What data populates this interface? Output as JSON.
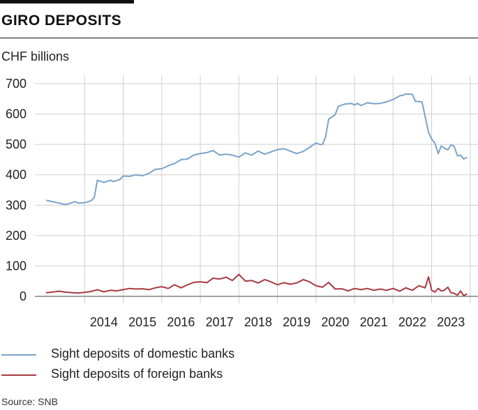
{
  "header": {
    "title": "GIRO DEPOSITS",
    "unit": "CHF billions"
  },
  "source": "Source: SNB",
  "chart_data": {
    "type": "line",
    "title": "GIRO DEPOSITS",
    "ylabel": "CHF billions",
    "xlabel": "",
    "ylim": [
      0,
      700
    ],
    "yticks": [
      0,
      100,
      200,
      300,
      400,
      500,
      600,
      700
    ],
    "xlim": [
      2013,
      2023.75
    ],
    "xticks": [
      "2014",
      "2015",
      "2016",
      "2017",
      "2018",
      "2019",
      "2020",
      "2021",
      "2022",
      "2023"
    ],
    "grid": true,
    "legend_position": "bottom",
    "series": [
      {
        "name": "Sight deposits of domestic banks",
        "color": "#7aa3c9",
        "points": [
          [
            2013.0,
            316
          ],
          [
            2013.17,
            312
          ],
          [
            2013.33,
            307
          ],
          [
            2013.5,
            302
          ],
          [
            2013.67,
            308
          ],
          [
            2013.75,
            312
          ],
          [
            2013.83,
            307
          ],
          [
            2014.0,
            308
          ],
          [
            2014.17,
            315
          ],
          [
            2014.25,
            325
          ],
          [
            2014.33,
            382
          ],
          [
            2014.5,
            375
          ],
          [
            2014.67,
            382
          ],
          [
            2014.75,
            378
          ],
          [
            2014.92,
            385
          ],
          [
            2015.0,
            396
          ],
          [
            2015.17,
            395
          ],
          [
            2015.33,
            400
          ],
          [
            2015.5,
            397
          ],
          [
            2015.67,
            405
          ],
          [
            2015.83,
            418
          ],
          [
            2016.0,
            420
          ],
          [
            2016.17,
            430
          ],
          [
            2016.33,
            437
          ],
          [
            2016.5,
            450
          ],
          [
            2016.67,
            452
          ],
          [
            2016.83,
            465
          ],
          [
            2017.0,
            470
          ],
          [
            2017.17,
            473
          ],
          [
            2017.33,
            480
          ],
          [
            2017.5,
            465
          ],
          [
            2017.67,
            468
          ],
          [
            2017.83,
            465
          ],
          [
            2018.0,
            458
          ],
          [
            2018.17,
            472
          ],
          [
            2018.33,
            465
          ],
          [
            2018.5,
            478
          ],
          [
            2018.67,
            468
          ],
          [
            2018.83,
            475
          ],
          [
            2019.0,
            483
          ],
          [
            2019.17,
            486
          ],
          [
            2019.33,
            478
          ],
          [
            2019.5,
            470
          ],
          [
            2019.67,
            477
          ],
          [
            2019.83,
            490
          ],
          [
            2020.0,
            505
          ],
          [
            2020.1,
            500
          ],
          [
            2020.17,
            500
          ],
          [
            2020.25,
            525
          ],
          [
            2020.33,
            583
          ],
          [
            2020.5,
            598
          ],
          [
            2020.58,
            625
          ],
          [
            2020.75,
            633
          ],
          [
            2020.92,
            635
          ],
          [
            2021.0,
            630
          ],
          [
            2021.08,
            635
          ],
          [
            2021.17,
            628
          ],
          [
            2021.33,
            637
          ],
          [
            2021.5,
            634
          ],
          [
            2021.67,
            635
          ],
          [
            2021.83,
            640
          ],
          [
            2022.0,
            648
          ],
          [
            2022.17,
            660
          ],
          [
            2022.25,
            662
          ],
          [
            2022.33,
            666
          ],
          [
            2022.5,
            665
          ],
          [
            2022.58,
            642
          ],
          [
            2022.75,
            640
          ],
          [
            2022.92,
            540
          ],
          [
            2023.0,
            518
          ],
          [
            2023.08,
            505
          ],
          [
            2023.17,
            470
          ],
          [
            2023.25,
            495
          ],
          [
            2023.33,
            488
          ],
          [
            2023.42,
            482
          ],
          [
            2023.5,
            498
          ],
          [
            2023.58,
            495
          ],
          [
            2023.67,
            462
          ],
          [
            2023.75,
            465
          ],
          [
            2023.83,
            452
          ],
          [
            2023.92,
            458
          ]
        ]
      },
      {
        "name": "Sight deposits of foreign banks",
        "color": "#a83a3f",
        "points": [
          [
            2013.0,
            12
          ],
          [
            2013.17,
            14
          ],
          [
            2013.33,
            17
          ],
          [
            2013.5,
            14
          ],
          [
            2013.67,
            12
          ],
          [
            2013.83,
            11
          ],
          [
            2014.0,
            13
          ],
          [
            2014.17,
            16
          ],
          [
            2014.33,
            22
          ],
          [
            2014.5,
            15
          ],
          [
            2014.67,
            20
          ],
          [
            2014.83,
            18
          ],
          [
            2015.0,
            22
          ],
          [
            2015.17,
            26
          ],
          [
            2015.33,
            24
          ],
          [
            2015.5,
            25
          ],
          [
            2015.67,
            22
          ],
          [
            2015.83,
            28
          ],
          [
            2016.0,
            32
          ],
          [
            2016.17,
            26
          ],
          [
            2016.33,
            38
          ],
          [
            2016.5,
            28
          ],
          [
            2016.67,
            38
          ],
          [
            2016.83,
            46
          ],
          [
            2017.0,
            48
          ],
          [
            2017.17,
            45
          ],
          [
            2017.33,
            60
          ],
          [
            2017.5,
            57
          ],
          [
            2017.67,
            63
          ],
          [
            2017.83,
            52
          ],
          [
            2018.0,
            72
          ],
          [
            2018.17,
            50
          ],
          [
            2018.33,
            52
          ],
          [
            2018.5,
            44
          ],
          [
            2018.67,
            55
          ],
          [
            2018.83,
            48
          ],
          [
            2019.0,
            38
          ],
          [
            2019.17,
            45
          ],
          [
            2019.33,
            40
          ],
          [
            2019.5,
            44
          ],
          [
            2019.67,
            55
          ],
          [
            2019.83,
            48
          ],
          [
            2020.0,
            35
          ],
          [
            2020.17,
            30
          ],
          [
            2020.33,
            46
          ],
          [
            2020.5,
            24
          ],
          [
            2020.67,
            25
          ],
          [
            2020.83,
            18
          ],
          [
            2021.0,
            26
          ],
          [
            2021.17,
            22
          ],
          [
            2021.33,
            26
          ],
          [
            2021.5,
            20
          ],
          [
            2021.67,
            24
          ],
          [
            2021.83,
            20
          ],
          [
            2022.0,
            26
          ],
          [
            2022.17,
            17
          ],
          [
            2022.33,
            28
          ],
          [
            2022.5,
            20
          ],
          [
            2022.67,
            35
          ],
          [
            2022.83,
            28
          ],
          [
            2022.92,
            64
          ],
          [
            2023.0,
            20
          ],
          [
            2023.08,
            14
          ],
          [
            2023.17,
            26
          ],
          [
            2023.25,
            18
          ],
          [
            2023.33,
            20
          ],
          [
            2023.42,
            30
          ],
          [
            2023.5,
            12
          ],
          [
            2023.58,
            10
          ],
          [
            2023.67,
            4
          ],
          [
            2023.75,
            18
          ],
          [
            2023.83,
            2
          ],
          [
            2023.92,
            8
          ]
        ]
      }
    ]
  }
}
